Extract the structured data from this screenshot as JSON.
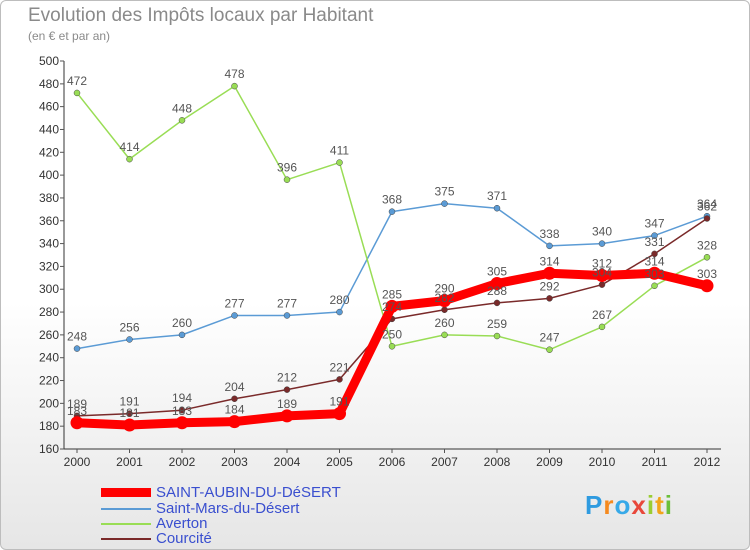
{
  "header": {
    "title": "Evolution des Impôts locaux par Habitant",
    "subtitle": "(en € et par an)"
  },
  "logo": {
    "text": "Proxiti"
  },
  "chart_data": {
    "type": "line",
    "title": "Evolution des Impôts locaux par Habitant",
    "subtitle": "(en € et par an)",
    "x": [
      "2000",
      "2001",
      "2002",
      "2003",
      "2004",
      "2005",
      "2006",
      "2007",
      "2008",
      "2009",
      "2010",
      "2011",
      "2012"
    ],
    "ylim": [
      160,
      500
    ],
    "yticks": [
      160,
      180,
      200,
      220,
      240,
      260,
      280,
      300,
      320,
      340,
      360,
      380,
      400,
      420,
      440,
      460,
      480,
      500
    ],
    "grid": false,
    "legend_position": "bottom-left",
    "series": [
      {
        "name": "SAINT-AUBIN-DU-DéSERT",
        "color": "#ff0000",
        "values": [
          183,
          181,
          183,
          184,
          189,
          191,
          285,
          290,
          305,
          314,
          312,
          314,
          303
        ]
      },
      {
        "name": "Saint-Mars-du-Désert",
        "color": "#5b9bd5",
        "values": [
          248,
          256,
          260,
          277,
          277,
          280,
          368,
          375,
          371,
          338,
          340,
          347,
          364
        ]
      },
      {
        "name": "Averton",
        "color": "#99dd55",
        "values": [
          472,
          414,
          448,
          478,
          396,
          411,
          250,
          260,
          259,
          247,
          267,
          303,
          328
        ]
      },
      {
        "name": "Courcité",
        "color": "#7a2a2a",
        "values": [
          189,
          191,
          194,
          204,
          212,
          221,
          274,
          282,
          288,
          292,
          304,
          331,
          362
        ]
      }
    ]
  }
}
